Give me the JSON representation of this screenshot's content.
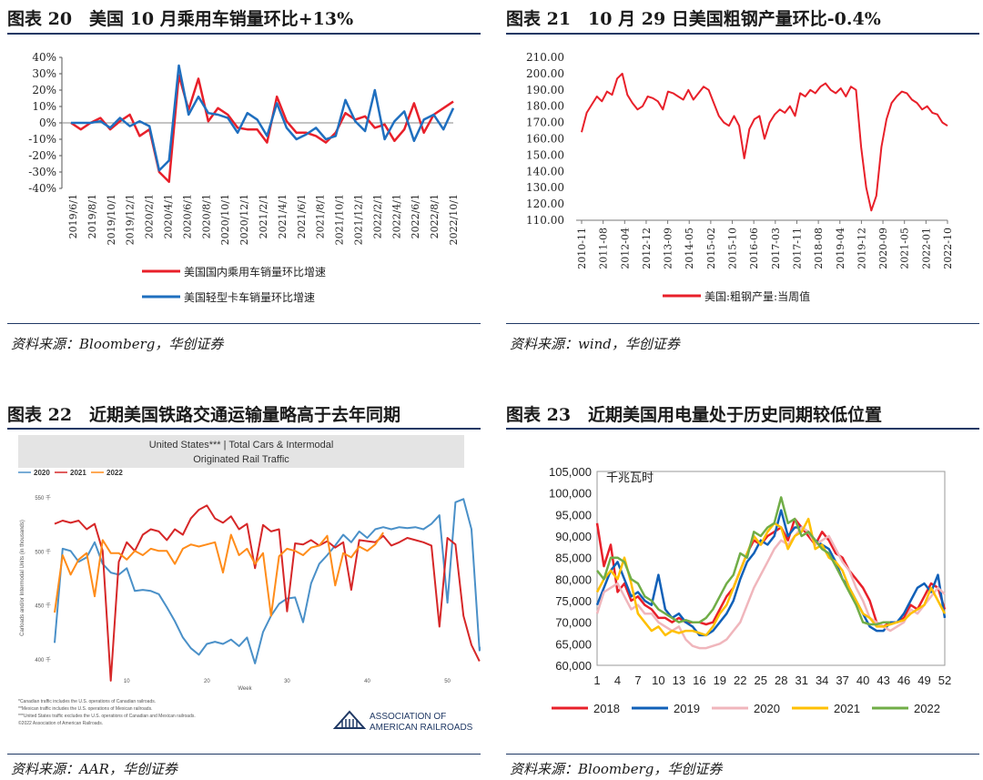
{
  "charts": [
    {
      "title": "图表 20　美国 10 月乘用车销量环比+13%",
      "source": "资料来源：Bloomberg，华创证券",
      "chart_data": {
        "type": "line",
        "ylim": [
          -40,
          40
        ],
        "ytick_labels": [
          "40%",
          "30%",
          "20%",
          "10%",
          "0%",
          "-10%",
          "-20%",
          "-30%",
          "-40%"
        ],
        "ytick_values": [
          40,
          30,
          20,
          10,
          0,
          -10,
          -20,
          -30,
          -40
        ],
        "x_tick_labels": [
          "2019/6/1",
          "2019/8/1",
          "2019/10/1",
          "2019/12/1",
          "2020/2/1",
          "2020/4/1",
          "2020/6/1",
          "2020/8/1",
          "2020/10/1",
          "2020/12/1",
          "2021/2/1",
          "2021/4/1",
          "2021/6/1",
          "2021/8/1",
          "2021/10/1",
          "2021/12/1",
          "2022/2/1",
          "2022/4/1",
          "2022/6/1",
          "2022/8/1",
          "2022/10/1"
        ],
        "series": [
          {
            "name": "美国国内乘用车销量环比增速",
            "color": "#e8202a",
            "values": [
              0,
              -4,
              0,
              3,
              -4,
              1,
              5,
              -8,
              -4,
              -30,
              -36,
              29,
              8,
              27,
              1,
              9,
              5,
              -3,
              -4,
              -4,
              -12,
              16,
              1,
              -6,
              -6,
              -8,
              -12,
              -6,
              6,
              2,
              4,
              -3,
              -1,
              -11,
              -4,
              12,
              -6,
              5,
              9,
              13
            ]
          },
          {
            "name": "美国轻型卡车销量环比增速",
            "color": "#1f6fbf",
            "values": [
              0,
              0,
              0,
              1,
              -3,
              3,
              -2,
              1,
              -2,
              -29,
              -23,
              35,
              5,
              16,
              6,
              5,
              3,
              -6,
              6,
              2,
              -8,
              12,
              -3,
              -10,
              -7,
              -3,
              -10,
              -8,
              14,
              1,
              -5,
              20,
              -10,
              1,
              7,
              -11,
              2,
              5,
              -4,
              9
            ]
          }
        ]
      }
    },
    {
      "title": "图表 21　10 月 29 日美国粗钢产量环比-0.4%",
      "source": "资料来源：wind，华创证券",
      "chart_data": {
        "type": "line",
        "ylim": [
          110,
          210
        ],
        "ytick_labels": [
          "210.00",
          "200.00",
          "190.00",
          "180.00",
          "170.00",
          "160.00",
          "150.00",
          "140.00",
          "130.00",
          "120.00",
          "110.00"
        ],
        "ytick_values": [
          210,
          200,
          190,
          180,
          170,
          160,
          150,
          140,
          130,
          120,
          110
        ],
        "x_tick_labels": [
          "2010-11",
          "2011-08",
          "2012-04",
          "2012-12",
          "2013-09",
          "2014-05",
          "2015-02",
          "2015-10",
          "2016-06",
          "2017-03",
          "2017-11",
          "2018-08",
          "2019-04",
          "2019-12",
          "2020-09",
          "2021-05",
          "2022-01",
          "2022-10"
        ],
        "series": [
          {
            "name": "美国:粗钢产量:当周值",
            "color": "#e8202a",
            "values": [
              164,
              176,
              181,
              186,
              183,
              189,
              187,
              197,
              200,
              187,
              182,
              178,
              180,
              186,
              185,
              183,
              178,
              189,
              188,
              186,
              184,
              190,
              184,
              188,
              192,
              190,
              182,
              174,
              170,
              168,
              174,
              168,
              148,
              166,
              172,
              174,
              160,
              170,
              175,
              178,
              176,
              180,
              174,
              188,
              186,
              190,
              188,
              192,
              194,
              190,
              188,
              191,
              186,
              192,
              190,
              155,
              130,
              116,
              125,
              155,
              172,
              182,
              186,
              189,
              188,
              184,
              182,
              178,
              180,
              176,
              175,
              170,
              168
            ]
          }
        ]
      }
    },
    {
      "title": "图表 22　近期美国铁路交通运输量略高于去年同期",
      "source": "资料来源：AAR，华创证券",
      "header_line1": "United States*** | Total Cars & Intermodal",
      "header_line2": "Originated Rail Traffic",
      "ylabel": "Carloads and/or Intermodal Units (in thousands)",
      "xlabel": "Week",
      "footnotes": [
        "*Canadian traffic includes the U.S. operations of Canadian railroads.",
        "**Mexican traffic includes the U.S. operations of Mexican railroads.",
        "***United States traffic excludes the U.S. operations of Canadian and Mexican railroads.",
        "©2022 Association of American Railroads."
      ],
      "logo_text_1": "ASSOCIATION OF",
      "logo_text_2": "AMERICAN RAILROADS",
      "chart_data": {
        "type": "line",
        "xlim": [
          1,
          53
        ],
        "ylim": [
          390,
          560
        ],
        "ytick_labels": [
          "550 千",
          "500 千",
          "450 千",
          "400 千"
        ],
        "ytick_values": [
          550,
          500,
          450,
          400
        ],
        "xtick_labels": [
          "10",
          "20",
          "30",
          "40",
          "50"
        ],
        "xtick_values": [
          10,
          20,
          30,
          40,
          50
        ],
        "series": [
          {
            "name": "2020",
            "color": "#4a90c8",
            "values": [
              415,
              502,
              500,
              490,
              494,
              508,
              488,
              480,
              478,
              484,
              463,
              464,
              463,
              460,
              448,
              435,
              420,
              410,
              404,
              414,
              416,
              414,
              418,
              412,
              420,
              396,
              425,
              440,
              451,
              456,
              457,
              434,
              470,
              488,
              496,
              505,
              515,
              508,
              518,
              512,
              520,
              522,
              520,
              522,
              521,
              522,
              520,
              525,
              533,
              452,
              545,
              548,
              520,
              408,
              422
            ]
          },
          {
            "name": "2021",
            "color": "#d62728",
            "values": [
              525,
              528,
              526,
              528,
              520,
              525,
              500,
              380,
              490,
              508,
              500,
              515,
              520,
              518,
              510,
              520,
              515,
              530,
              538,
              542,
              530,
              526,
              532,
              520,
              525,
              484,
              524,
              518,
              520,
              444,
              507,
              506,
              510,
              505,
              509,
              503,
              508,
              464,
              510,
              509,
              508,
              514,
              505,
              508,
              512,
              510,
              508,
              505,
              430,
              512,
              506,
              440,
              413,
              398
            ]
          },
          {
            "name": "2022",
            "color": "#ff8c1a",
            "values": [
              443,
              496,
              478,
              492,
              498,
              458,
              510,
              498,
              498,
              492,
              500,
              496,
              502,
              500,
              500,
              488,
              502,
              506,
              504,
              506,
              508,
              480,
              515,
              496,
              502,
              488,
              498,
              440,
              495,
              502,
              500,
              496,
              503,
              505,
              514,
              468,
              498,
              494,
              504,
              500,
              506,
              517
            ]
          }
        ]
      }
    },
    {
      "title": "图表 23　近期美国用电量处于历史同期较低位置",
      "source": "资料来源：Bloomberg，华创证券",
      "unit_label": "千兆瓦时",
      "chart_data": {
        "type": "line",
        "xlim": [
          1,
          52
        ],
        "ylim": [
          60000,
          105000
        ],
        "ytick_labels": [
          "105,000",
          "100,000",
          "95,000",
          "90,000",
          "85,000",
          "80,000",
          "75,000",
          "70,000",
          "65,000",
          "60,000"
        ],
        "ytick_values": [
          105000,
          100000,
          95000,
          90000,
          85000,
          80000,
          75000,
          70000,
          65000,
          60000
        ],
        "xtick_labels": [
          "1",
          "4",
          "7",
          "10",
          "13",
          "16",
          "19",
          "22",
          "25",
          "28",
          "31",
          "34",
          "37",
          "40",
          "43",
          "46",
          "49",
          "52"
        ],
        "xtick_values": [
          1,
          4,
          7,
          10,
          13,
          16,
          19,
          22,
          25,
          28,
          31,
          34,
          37,
          40,
          43,
          46,
          49,
          52
        ],
        "series": [
          {
            "name": "2018",
            "color": "#e8202a",
            "values": [
              93000,
              83000,
              88000,
              77000,
              79000,
              75000,
              76000,
              74000,
              73000,
              71000,
              71000,
              70000,
              71000,
              70000,
              70000,
              70000,
              69500,
              70000,
              73000,
              76000,
              78000,
              82000,
              86000,
              89000,
              88000,
              90000,
              91000,
              92000,
              89000,
              94000,
              92000,
              90000,
              88000,
              91000,
              89000,
              86000,
              85000,
              82000,
              80000,
              78000,
              75000,
              70000,
              69000,
              70000,
              70000,
              71000,
              74000,
              73000,
              76000,
              79000,
              78000,
              73000
            ]
          },
          {
            "name": "2019",
            "color": "#1060b8",
            "values": [
              74000,
              78000,
              82000,
              84000,
              80000,
              76000,
              77000,
              75000,
              74000,
              81000,
              73000,
              71000,
              72000,
              70000,
              69000,
              67000,
              67000,
              68000,
              70000,
              72000,
              75000,
              80000,
              84000,
              86000,
              89000,
              88000,
              90000,
              96000,
              90000,
              92000,
              92000,
              91000,
              89000,
              88000,
              87000,
              84000,
              80000,
              78000,
              75000,
              72000,
              69000,
              68000,
              68000,
              70000,
              70000,
              72000,
              75000,
              78000,
              79000,
              77000,
              81000,
              71000
            ]
          },
          {
            "name": "2020",
            "color": "#f0b6bc",
            "values": [
              72000,
              77000,
              78000,
              79000,
              76000,
              73000,
              74000,
              72000,
              72000,
              70000,
              69000,
              68000,
              69000,
              66000,
              64500,
              64000,
              64000,
              64500,
              65000,
              66000,
              68000,
              70000,
              74000,
              78000,
              81000,
              84000,
              87000,
              89000,
              88000,
              90000,
              92000,
              91000,
              88000,
              89000,
              90000,
              87000,
              84000,
              82000,
              78000,
              75000,
              71000,
              70000,
              69000,
              68000,
              69000,
              70000,
              73000,
              72000,
              74000,
              76000,
              78000,
              76500
            ]
          },
          {
            "name": "2021",
            "color": "#ffc000",
            "values": [
              77000,
              80000,
              82000,
              80000,
              85000,
              79000,
              72000,
              70000,
              68000,
              69000,
              67000,
              68000,
              67500,
              68000,
              68000,
              67500,
              67000,
              69000,
              72000,
              74000,
              78000,
              82000,
              86000,
              90000,
              88000,
              91000,
              93000,
              92000,
              87000,
              90000,
              91000,
              94000,
              87000,
              88000,
              85000,
              84000,
              82000,
              78000,
              75000,
              72000,
              71000,
              69000,
              69000,
              69500,
              70000,
              70500,
              72000,
              73000,
              74000,
              78000,
              75000,
              72000
            ]
          },
          {
            "name": "2022",
            "color": "#70ad47",
            "values": [
              82000,
              80000,
              85000,
              85000,
              84000,
              80000,
              79000,
              76000,
              75000,
              73000,
              72000,
              71000,
              70000,
              70500,
              70000,
              70000,
              71000,
              73000,
              76000,
              79000,
              81000,
              86000,
              85000,
              91000,
              90000,
              92000,
              93000,
              99000,
              93000,
              94000,
              90000,
              91000,
              89000,
              87000,
              86000,
              83000,
              80000,
              77000,
              74000,
              70000,
              69500,
              69500,
              70000,
              70000
            ]
          }
        ]
      }
    }
  ]
}
